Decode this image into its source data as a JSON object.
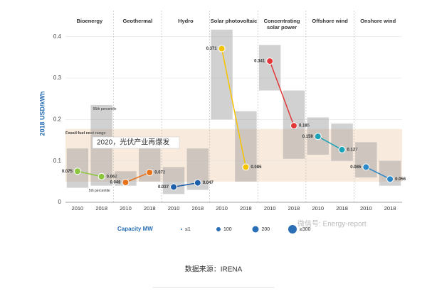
{
  "chart_data": {
    "type": "range-dumbbell",
    "y_label": "2018 USD/kWh",
    "categories": [
      "Bioenergy",
      "Geothermal",
      "Hydro",
      "Solar photovoltaic",
      "Concentrating solar power",
      "Offshore wind",
      "Onshore wind"
    ],
    "colors": [
      "#8cc63f",
      "#e8731d",
      "#1f5ea8",
      "#f5c400",
      "#e2383a",
      "#1ba3b8",
      "#2a87c8"
    ],
    "series": [
      {
        "name": "2010",
        "values": [
          0.075,
          0.048,
          0.037,
          0.371,
          0.341,
          0.159,
          0.085
        ],
        "p5": [
          0.035,
          0.04,
          0.02,
          0.2,
          0.27,
          0.115,
          0.06
        ],
        "p95": [
          0.13,
          0.075,
          0.085,
          0.417,
          0.38,
          0.205,
          0.145
        ]
      },
      {
        "name": "2018",
        "values": [
          0.062,
          0.072,
          0.047,
          0.085,
          0.185,
          0.127,
          0.056
        ],
        "p5": [
          0.04,
          0.05,
          0.03,
          0.05,
          0.105,
          0.1,
          0.04
        ],
        "p95": [
          0.235,
          0.13,
          0.13,
          0.22,
          0.27,
          0.19,
          0.1
        ]
      }
    ],
    "fossil_range": [
      0.05,
      0.177
    ],
    "annotations": {
      "fossil": "Fossil fuel cost range",
      "p95": "95th percentile",
      "p5": "5th percentile"
    },
    "ylim": [
      0,
      0.42
    ],
    "yticks": [
      0,
      0.1,
      0.2,
      0.3,
      0.4
    ],
    "grid": true,
    "legend": {
      "title": "Capacity MW",
      "items": [
        "≤1",
        "100",
        "200",
        "≥300"
      ]
    }
  },
  "overlay": "2020，光伏产业再爆发",
  "watermark": "微信号: Energy-report",
  "caption": "数据来源：IRENA"
}
